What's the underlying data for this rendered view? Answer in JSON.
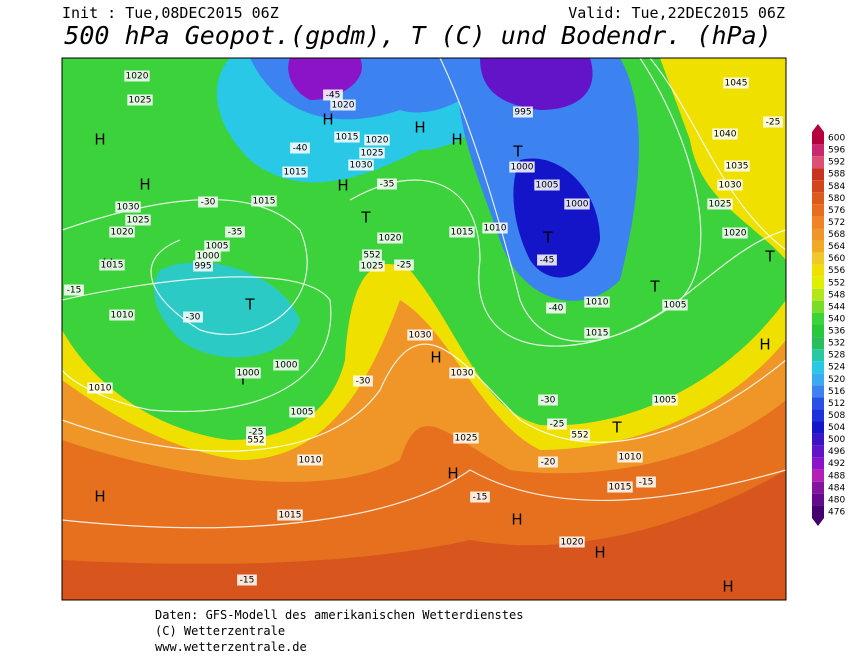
{
  "header": {
    "init": "Init : Tue,08DEC2015 06Z",
    "valid": "Valid: Tue,22DEC2015 06Z",
    "title": "500 hPa Geopot.(gpdm), T (C) und Bodendr. (hPa)"
  },
  "colorbar": {
    "labels": [
      600,
      596,
      592,
      588,
      584,
      580,
      576,
      572,
      568,
      564,
      560,
      556,
      552,
      548,
      544,
      540,
      536,
      532,
      528,
      524,
      520,
      516,
      512,
      508,
      504,
      500,
      496,
      492,
      488,
      484,
      480,
      476
    ],
    "colors": [
      "#b4003c",
      "#c8286e",
      "#dc5078",
      "#c8321e",
      "#d2461e",
      "#dc5a1e",
      "#e66e1e",
      "#f08228",
      "#f09628",
      "#f0aa28",
      "#f0c828",
      "#f0e000",
      "#dcf000",
      "#b4e61e",
      "#78dc28",
      "#3cd23c",
      "#28c83c",
      "#28be5a",
      "#28c8a0",
      "#28c8e6",
      "#3caaf0",
      "#3c82f0",
      "#2850e6",
      "#1e32dc",
      "#1414c8",
      "#3c14c8",
      "#6414c8",
      "#8c14c8",
      "#b41eb4",
      "#8214a0",
      "#640a8c",
      "#46006e"
    ]
  },
  "map_labels": [
    "H",
    "H",
    "H",
    "H",
    "H",
    "H",
    "H",
    "H",
    "H",
    "H",
    "H",
    "H",
    "H",
    "H",
    "T",
    "T",
    "T",
    "T",
    "T",
    "T",
    "T",
    "T",
    "1020",
    "1025",
    "1020",
    "1015",
    "1020",
    "1025",
    "1030",
    "1015",
    "1015",
    "1030",
    "1025",
    "1020",
    "1005",
    "1000",
    "995",
    "1015",
    "1010",
    "1000",
    "1000",
    "1005",
    "1010",
    "1010",
    "1015",
    "1020",
    "1025",
    "1015",
    "1010",
    "995",
    "1000",
    "1005",
    "1000",
    "1010",
    "1015",
    "1005",
    "1030",
    "1030",
    "1025",
    "1010",
    "1015",
    "1020",
    "1005",
    "1020",
    "1025",
    "1030",
    "1035",
    "1040",
    "1045",
    "-45",
    "-40",
    "-35",
    "-30",
    "-35",
    "-30",
    "-25",
    "-45",
    "-40",
    "-30",
    "-30",
    "-25",
    "-20",
    "-15",
    "-15",
    "-15",
    "-25",
    "-25",
    "-15",
    "552",
    "552",
    "552"
  ],
  "footer": [
    "Daten: GFS-Modell des amerikanischen Wetterdienstes",
    "(C) Wetterzentrale",
    "www.wetterzentrale.de"
  ]
}
